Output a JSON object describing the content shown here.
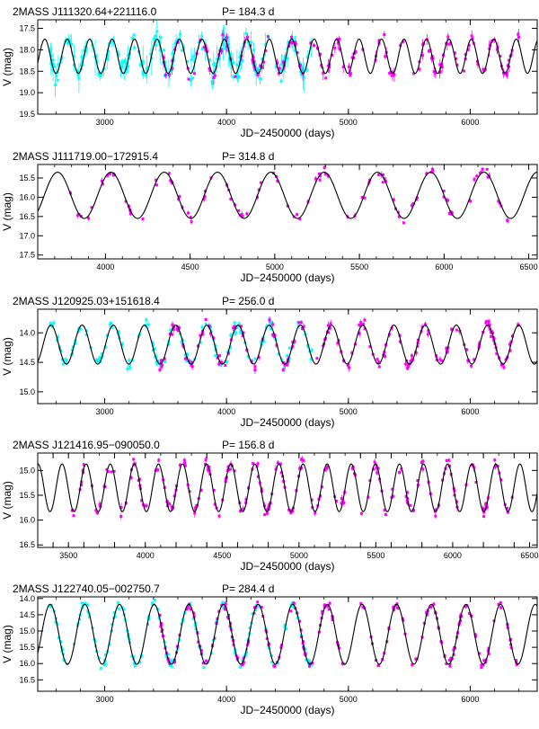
{
  "figure": {
    "title": ""
  },
  "chart_data": [
    {
      "type": "scatter",
      "title": "2MASS J111320.64+221116.0",
      "period_label": "P= 184.3 d",
      "xlabel": "JD−2450000 (days)",
      "ylabel": "V (mag)",
      "xlim": [
        2450,
        6550
      ],
      "ylim": [
        19.5,
        17.3
      ],
      "xticks": [
        3000,
        4000,
        5000,
        6000
      ],
      "yticks": [
        17.5,
        18.0,
        18.5,
        19.0,
        19.5
      ],
      "ytick_labels": [
        "17.5",
        "18.0",
        "18.5",
        "19.0",
        "19.5"
      ],
      "model": {
        "period": 184.3,
        "mean": 18.15,
        "amplitude": 0.4,
        "epoch": 2600
      },
      "series": [
        {
          "color": "#00ffff",
          "x_range": [
            2550,
            4700
          ],
          "n": 220,
          "scatter": 0.38,
          "errbar": 0.25
        },
        {
          "color": "#ff00ff",
          "x_range": [
            3450,
            6400
          ],
          "n": 170,
          "scatter": 0.28,
          "errbar": 0.12
        }
      ]
    },
    {
      "type": "scatter",
      "title": "2MASS J111719.00−172915.4",
      "period_label": "P= 314.8 d",
      "xlabel": "JD−2450000 (days)",
      "ylabel": "V (mag)",
      "xlim": [
        3600,
        6550
      ],
      "ylim": [
        17.6,
        15.15
      ],
      "xticks": [
        4000,
        4500,
        5000,
        5500,
        6000,
        6500
      ],
      "yticks": [
        15.5,
        16.0,
        16.5,
        17.0,
        17.5
      ],
      "ytick_labels": [
        "15.5",
        "16.0",
        "16.5",
        "17.0",
        "17.5"
      ],
      "model": {
        "period": 314.8,
        "mean": 15.95,
        "amplitude": 0.6,
        "epoch": 3560
      },
      "series": [
        {
          "color": "#ff00ff",
          "x_range": [
            3700,
            6400
          ],
          "n": 110,
          "scatter": 0.2,
          "errbar": 0.06
        }
      ]
    },
    {
      "type": "scatter",
      "title": "2MASS J120925.03+151618.4",
      "period_label": "P= 256.0 d",
      "xlabel": "JD−2450000 (days)",
      "ylabel": "V (mag)",
      "xlim": [
        2450,
        6550
      ],
      "ylim": [
        15.2,
        13.6
      ],
      "xticks": [
        3000,
        4000,
        5000,
        6000
      ],
      "yticks": [
        14.0,
        14.5,
        15.0
      ],
      "ytick_labels": [
        "14.0",
        "14.5",
        "15.0"
      ],
      "model": {
        "period": 256.0,
        "mean": 14.2,
        "amplitude": 0.33,
        "epoch": 2430
      },
      "series": [
        {
          "color": "#00ffff",
          "x_range": [
            2550,
            4700
          ],
          "n": 150,
          "scatter": 0.18,
          "errbar": 0.04
        },
        {
          "color": "#ff00ff",
          "x_range": [
            3450,
            6400
          ],
          "n": 190,
          "scatter": 0.16,
          "errbar": 0.04
        }
      ]
    },
    {
      "type": "scatter",
      "title": "2MASS J121416.95−090050.0",
      "period_label": "P= 156.8 d",
      "xlabel": "JD−2450000 (days)",
      "ylabel": "V (mag)",
      "xlim": [
        3300,
        6550
      ],
      "ylim": [
        16.55,
        14.65
      ],
      "xticks": [
        3400,
        3600,
        3800,
        4000,
        4200,
        4400,
        4600,
        4800,
        5000,
        5200,
        5400,
        5600,
        5800,
        6000,
        6200,
        6400
      ],
      "xtick_labels_at": [
        3500,
        4000,
        4500,
        5000,
        5500,
        6000,
        6500
      ],
      "yticks": [
        15.0,
        15.5,
        16.0,
        16.5
      ],
      "ytick_labels": [
        "15.0",
        "15.5",
        "16.0",
        "16.5"
      ],
      "model": {
        "period": 156.8,
        "mean": 15.35,
        "amplitude": 0.48,
        "epoch": 3380
      },
      "series": [
        {
          "color": "#ff00ff",
          "x_range": [
            3500,
            6400
          ],
          "n": 230,
          "scatter": 0.2,
          "errbar": 0.05
        }
      ]
    },
    {
      "type": "scatter",
      "title": "2MASS J122740.05−002750.7",
      "period_label": "P= 284.4 d",
      "xlabel": "JD−2450000 (days)",
      "ylabel": "V (mag)",
      "xlim": [
        2450,
        6550
      ],
      "ylim": [
        16.85,
        13.95
      ],
      "xticks": [
        3000,
        4000,
        5000,
        6000
      ],
      "yticks": [
        14.0,
        14.5,
        15.0,
        15.5,
        16.0,
        16.5
      ],
      "ytick_labels": [
        "14.0",
        "14.5",
        "15.0",
        "15.5",
        "16.0",
        "16.5"
      ],
      "model": {
        "period": 284.4,
        "mean": 15.1,
        "amplitude": 0.92,
        "epoch": 2410
      },
      "series": [
        {
          "color": "#00ffff",
          "x_range": [
            2550,
            4700
          ],
          "n": 190,
          "scatter": 0.22,
          "errbar": 0.05
        },
        {
          "color": "#ff00ff",
          "x_range": [
            3450,
            6400
          ],
          "n": 220,
          "scatter": 0.2,
          "errbar": 0.05
        }
      ]
    }
  ]
}
